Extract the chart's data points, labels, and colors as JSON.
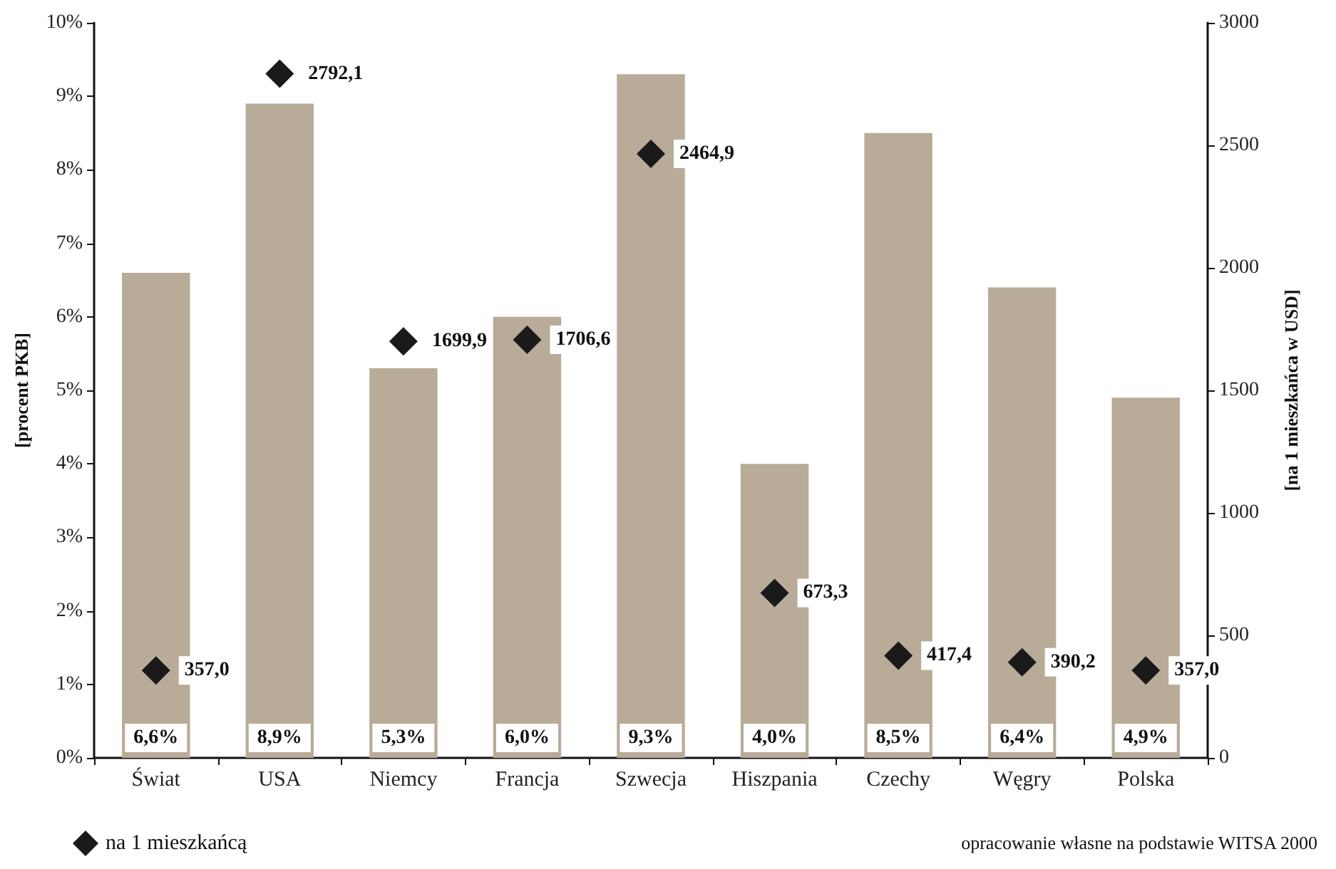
{
  "chart_data": {
    "type": "bar",
    "ylabel": "[procent PKB]",
    "y2label": "[na 1 mieszkańca w USD]",
    "categories": [
      "Świat",
      "USA",
      "Niemcy",
      "Francja",
      "Szwecja",
      "Hiszpania",
      "Czechy",
      "Węgry",
      "Polska"
    ],
    "series": [
      {
        "color": "#b8ab98",
        "values": [
          6.6,
          8.9,
          5.3,
          6.0,
          9.3,
          4.0,
          8.5,
          6.4,
          4.9
        ],
        "value_labels": [
          "6,6%",
          "8,9%",
          "5,3%",
          "6,0%",
          "9,3%",
          "4,0%",
          "8,5%",
          "6,4%",
          "4,9%"
        ]
      },
      {
        "type": "scatter",
        "name": "na 1 mieszkańcą",
        "axis": "y2",
        "color": "#1a1a1a",
        "marker": "diamond",
        "x": [
          "Świat",
          "USA",
          "Niemcy",
          "Francja",
          "Szwecja",
          "Hiszpania",
          "Czechy",
          "Węgry",
          "Polska"
        ],
        "values": [
          357.0,
          2792.1,
          1699.9,
          1706.6,
          2464.9,
          673.3,
          417.4,
          390.2,
          357.0
        ],
        "value_labels": [
          "357,0",
          "2792,1",
          "1699,9",
          "1706,6",
          "2464,9",
          "673,3",
          "417,4",
          "390,2",
          "357,0"
        ]
      }
    ],
    "ylim": [
      0,
      10
    ],
    "yticks": [
      {
        "value": 0,
        "label": "0%"
      },
      {
        "value": 1,
        "label": "1%"
      },
      {
        "value": 2,
        "label": "2%"
      },
      {
        "value": 3,
        "label": "3%"
      },
      {
        "value": 4,
        "label": "4%"
      },
      {
        "value": 5,
        "label": "5%"
      },
      {
        "value": 6,
        "label": "6%"
      },
      {
        "value": 7,
        "label": "7%"
      },
      {
        "value": 8,
        "label": "8%"
      },
      {
        "value": 9,
        "label": "9%"
      },
      {
        "value": 10,
        "label": "10%"
      }
    ],
    "y2lim": [
      0,
      3000
    ],
    "y2ticks": [
      0,
      500,
      1000,
      1500,
      2000,
      2500,
      3000
    ],
    "legend": "bottom left",
    "grid": false,
    "annotations": [
      "opracowanie własne na podstawie WITSA 2000"
    ]
  }
}
